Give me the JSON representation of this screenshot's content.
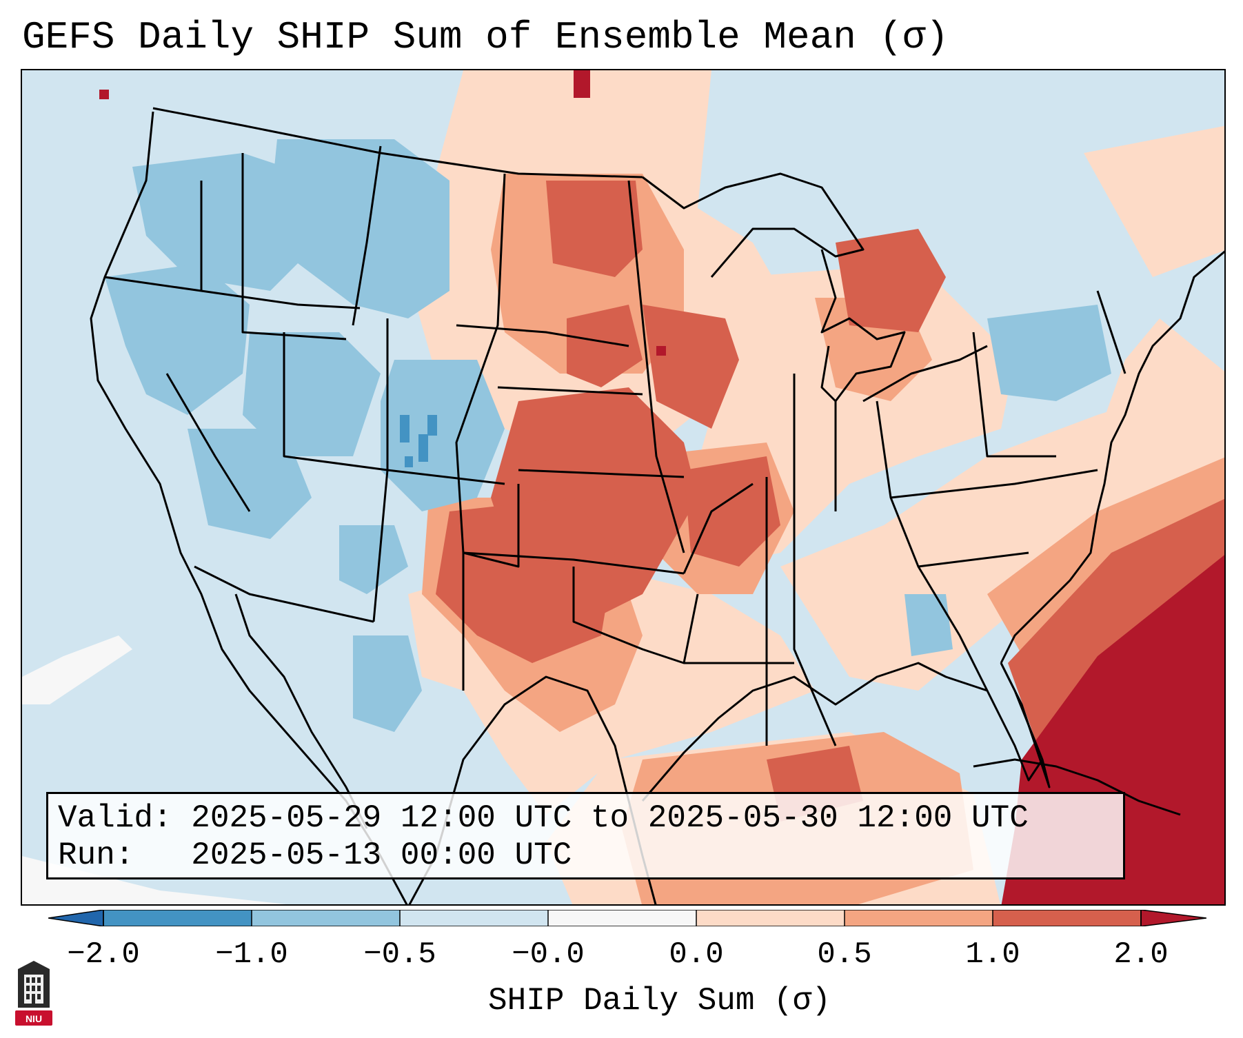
{
  "title": "GEFS Daily SHIP Sum of Ensemble Mean (σ)",
  "info": {
    "valid": "Valid: 2025-05-29 12:00 UTC to 2025-05-30 12:00 UTC",
    "run": "Run:   2025-05-13 00:00 UTC"
  },
  "colorbar": {
    "label": "SHIP Daily Sum (σ)",
    "ticks": [
      "−2.0",
      "−1.0",
      "−0.5",
      "−0.0",
      "0.0",
      "0.5",
      "1.0",
      "2.0"
    ],
    "colors": {
      "below": "#2166ac",
      "b1": "#4393c3",
      "b2": "#92c5de",
      "b3": "#d1e5f0",
      "b4": "#f7f7f7",
      "b5": "#fddbc7",
      "b6": "#f4a582",
      "b7": "#d6604d",
      "above": "#b2182b"
    }
  },
  "logo": {
    "text": "NIU"
  },
  "regions": [
    {
      "name": "northwest-negative",
      "category": "-1.0 to -0.5"
    },
    {
      "name": "central-plains-positive",
      "category": "1.0 to 2.0"
    },
    {
      "name": "southern-plains-positive",
      "category": "1.0 to 2.0"
    },
    {
      "name": "atlantic-southeast-positive",
      "category": "above 2.0"
    },
    {
      "name": "gulf-of-mexico-positive",
      "category": "0.5 to 1.0"
    },
    {
      "name": "northeast-negative",
      "category": "-1.0 to -0.5"
    }
  ]
}
